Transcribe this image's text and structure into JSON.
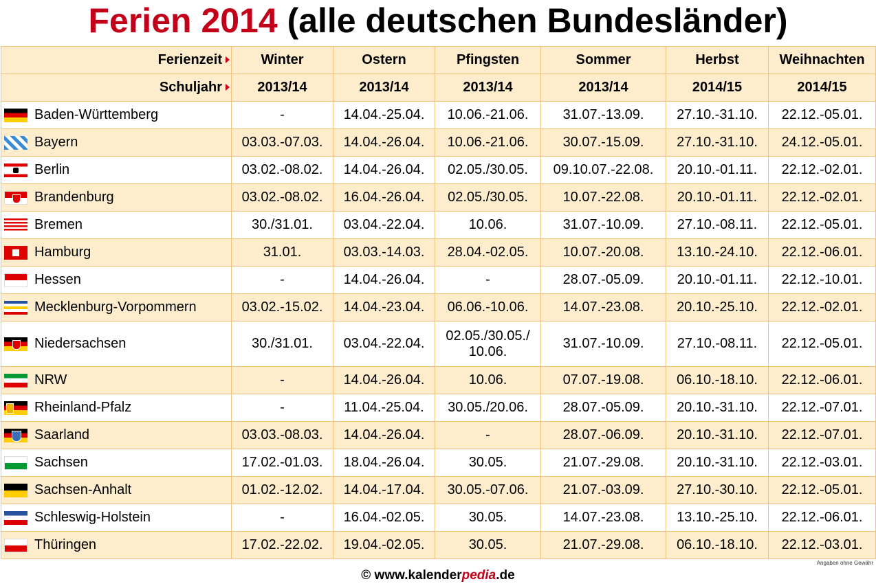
{
  "title": {
    "highlight": "Ferien 2014",
    "rest": " (alle deutschen Bundesländer)"
  },
  "colors": {
    "accent": "#c3001a",
    "row_alt": "#fdedcd",
    "border": "#f3c27a"
  },
  "header": {
    "ferienzeit_label": "Ferienzeit",
    "schuljahr_label": "Schuljahr",
    "columns": [
      "Winter",
      "Ostern",
      "Pfingsten",
      "Sommer",
      "Herbst",
      "Weihnachten"
    ],
    "schuljahre": [
      "2013/14",
      "2013/14",
      "2013/14",
      "2013/14",
      "2014/15",
      "2014/15"
    ]
  },
  "rows": [
    {
      "state": "Baden-Württemberg",
      "flag": "bw-flag-icon",
      "values": [
        "-",
        "14.04.-25.04.",
        "10.06.-21.06.",
        "31.07.-13.09.",
        "27.10.-31.10.",
        "22.12.-05.01."
      ]
    },
    {
      "state": "Bayern",
      "flag": "by-flag-icon",
      "values": [
        "03.03.-07.03.",
        "14.04.-26.04.",
        "10.06.-21.06.",
        "30.07.-15.09.",
        "27.10.-31.10.",
        "24.12.-05.01."
      ]
    },
    {
      "state": "Berlin",
      "flag": "be-flag-icon",
      "values": [
        "03.02.-08.02.",
        "14.04.-26.04.",
        "02.05./30.05.",
        "09.10.07.-22.08.",
        "20.10.-01.11.",
        "22.12.-02.01."
      ]
    },
    {
      "state": "Brandenburg",
      "flag": "bb-flag-icon",
      "values": [
        "03.02.-08.02.",
        "16.04.-26.04.",
        "02.05./30.05.",
        "10.07.-22.08.",
        "20.10.-01.11.",
        "22.12.-02.01."
      ]
    },
    {
      "state": "Bremen",
      "flag": "hb-flag-icon",
      "values": [
        "30./31.01.",
        "03.04.-22.04.",
        "10.06.",
        "31.07.-10.09.",
        "27.10.-08.11.",
        "22.12.-05.01."
      ]
    },
    {
      "state": "Hamburg",
      "flag": "hh-flag-icon",
      "values": [
        "31.01.",
        "03.03.-14.03.",
        "28.04.-02.05.",
        "10.07.-20.08.",
        "13.10.-24.10.",
        "22.12.-06.01."
      ]
    },
    {
      "state": "Hessen",
      "flag": "he-flag-icon",
      "values": [
        "-",
        "14.04.-26.04.",
        "-",
        "28.07.-05.09.",
        "20.10.-01.11.",
        "22.12.-10.01."
      ]
    },
    {
      "state": "Mecklenburg-Vorpommern",
      "flag": "mv-flag-icon",
      "values": [
        "03.02.-15.02.",
        "14.04.-23.04.",
        "06.06.-10.06.",
        "14.07.-23.08.",
        "20.10.-25.10.",
        "22.12.-02.01."
      ]
    },
    {
      "state": "Niedersachsen",
      "flag": "ni-flag-icon",
      "values": [
        "30./31.01.",
        "03.04.-22.04.",
        "02.05./30.05./ 10.06.",
        "31.07.-10.09.",
        "27.10.-08.11.",
        "22.12.-05.01."
      ]
    },
    {
      "state": "NRW",
      "flag": "nw-flag-icon",
      "values": [
        "-",
        "14.04.-26.04.",
        "10.06.",
        "07.07.-19.08.",
        "06.10.-18.10.",
        "22.12.-06.01."
      ]
    },
    {
      "state": "Rheinland-Pfalz",
      "flag": "rp-flag-icon",
      "values": [
        "-",
        "11.04.-25.04.",
        "30.05./20.06.",
        "28.07.-05.09.",
        "20.10.-31.10.",
        "22.12.-07.01."
      ]
    },
    {
      "state": "Saarland",
      "flag": "sl-flag-icon",
      "values": [
        "03.03.-08.03.",
        "14.04.-26.04.",
        "-",
        "28.07.-06.09.",
        "20.10.-31.10.",
        "22.12.-07.01."
      ]
    },
    {
      "state": "Sachsen",
      "flag": "sn-flag-icon",
      "values": [
        "17.02.-01.03.",
        "18.04.-26.04.",
        "30.05.",
        "21.07.-29.08.",
        "20.10.-31.10.",
        "22.12.-03.01."
      ]
    },
    {
      "state": "Sachsen-Anhalt",
      "flag": "st-flag-icon",
      "values": [
        "01.02.-12.02.",
        "14.04.-17.04.",
        "30.05.-07.06.",
        "21.07.-03.09.",
        "27.10.-30.10.",
        "22.12.-05.01."
      ]
    },
    {
      "state": "Schleswig-Holstein",
      "flag": "sh-flag-icon",
      "values": [
        "-",
        "16.04.-02.05.",
        "30.05.",
        "14.07.-23.08.",
        "13.10.-25.10.",
        "22.12.-06.01."
      ]
    },
    {
      "state": "Thüringen",
      "flag": "th-flag-icon",
      "values": [
        "17.02.-22.02.",
        "19.04.-02.05.",
        "30.05.",
        "21.07.-29.08.",
        "06.10.-18.10.",
        "22.12.-03.01."
      ]
    }
  ],
  "footer": {
    "prefix": "© www.kalender",
    "pedia": "pedia",
    "suffix": ".de"
  },
  "note": "Angaben ohne Gewähr"
}
